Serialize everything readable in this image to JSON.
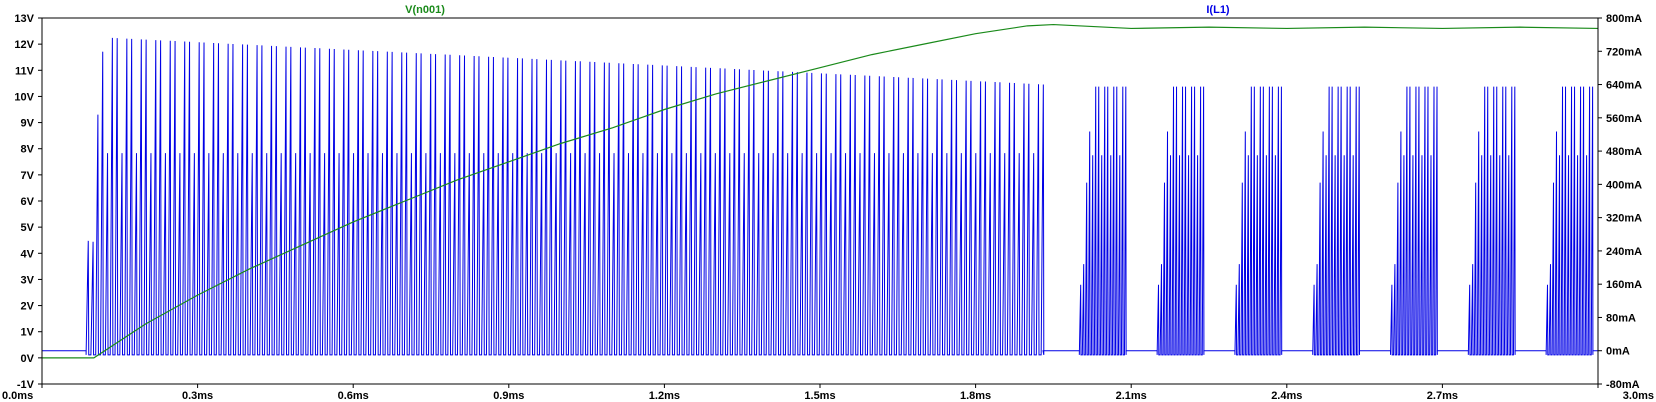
{
  "chart_data": {
    "type": "line",
    "x_axis": {
      "ticks": [
        "0.0ms",
        "0.3ms",
        "0.6ms",
        "0.9ms",
        "1.2ms",
        "1.5ms",
        "1.8ms",
        "2.1ms",
        "2.4ms",
        "2.7ms",
        "3.0ms"
      ],
      "range_ms": [
        0,
        3.0
      ]
    },
    "y_left": {
      "ticks": [
        "13V",
        "12V",
        "11V",
        "10V",
        "9V",
        "8V",
        "7V",
        "6V",
        "5V",
        "4V",
        "3V",
        "2V",
        "1V",
        "0V",
        "-1V"
      ],
      "range_V": [
        -1,
        13
      ]
    },
    "y_right": {
      "ticks": [
        "800mA",
        "720mA",
        "640mA",
        "560mA",
        "480mA",
        "400mA",
        "320mA",
        "240mA",
        "160mA",
        "80mA",
        "0mA",
        "-80mA"
      ],
      "range_mA": [
        -80,
        800
      ]
    },
    "series": [
      {
        "name": "V(n001)",
        "color": "#1a8a1a",
        "axis": "left",
        "x_ms": [
          0,
          0.1,
          0.2,
          0.3,
          0.4,
          0.5,
          0.6,
          0.7,
          0.8,
          0.9,
          1.0,
          1.1,
          1.2,
          1.3,
          1.4,
          1.5,
          1.6,
          1.7,
          1.8,
          1.9,
          1.95,
          2.1,
          2.25,
          2.4,
          2.55,
          2.7,
          2.85,
          3.0
        ],
        "y_V": [
          0,
          0,
          1.3,
          2.4,
          3.4,
          4.3,
          5.2,
          6.0,
          6.8,
          7.5,
          8.2,
          8.8,
          9.5,
          10.1,
          10.6,
          11.1,
          11.6,
          12.0,
          12.4,
          12.7,
          12.75,
          12.6,
          12.65,
          12.6,
          12.65,
          12.6,
          12.65,
          12.6
        ]
      },
      {
        "name": "I(L1)",
        "color": "#0000e6",
        "axis": "right",
        "description_values": {
          "switching_start_ms": 0.085,
          "continuous_end_ms": 1.93,
          "peak_mA_start": 755,
          "peak_mA_end": 640,
          "secondary_peak_mA": 475,
          "min_mA": -10,
          "burst_centers_ms": [
            2.05,
            2.2,
            2.35,
            2.5,
            2.65,
            2.8,
            2.95
          ],
          "burst_peak_mA": 635,
          "burst_secondary_peak_mA": 470,
          "idle_mA": 0
        }
      }
    ],
    "grid": false,
    "legend": "top (trace names above plot)"
  }
}
